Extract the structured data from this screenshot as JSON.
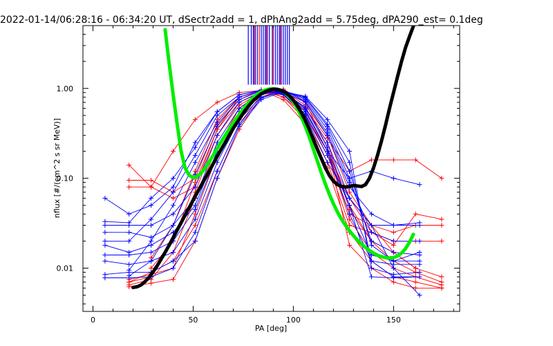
{
  "chart_data": {
    "type": "line",
    "title": "2022-01-14/06:28:16 - 06:34:20 UT, dSectr2add = 1, dPhAng2add = 5.75deg, dPA290_est=    0.1deg",
    "xlabel": "PA [deg]",
    "ylabel": "nflux [#/(cm^2 s sr MeV)]",
    "xlim": [
      -5,
      183
    ],
    "ylim": [
      0.0033,
      5.0
    ],
    "y_scale": "log",
    "x_ticks": [
      0,
      50,
      100,
      150
    ],
    "x_tick_labels": [
      "0",
      "50",
      "100",
      "150"
    ],
    "y_ticks": [
      0.01,
      0.1,
      1.0
    ],
    "y_tick_labels": [
      "0.01",
      "0.10",
      "1.00"
    ],
    "grid": false,
    "colors": {
      "red_series": "#ff0000",
      "blue_series": "#0000ff",
      "green_fit": "#00ee00",
      "black_fit": "#000000"
    },
    "vertical_markers": {
      "y_from": 1.1,
      "y_to": 5.0,
      "blue_x": [
        77.5,
        79,
        80,
        81,
        82,
        84,
        85,
        86,
        87,
        88,
        89.5,
        91,
        92,
        93,
        94,
        95,
        96,
        97,
        98
      ],
      "red_x": [
        80.5,
        83,
        86.5,
        90,
        93.5
      ]
    },
    "series": [
      {
        "color": "red",
        "x": [
          18,
          29,
          40,
          51,
          62,
          73,
          84,
          95,
          106,
          117,
          128,
          139,
          150,
          161,
          174
        ],
        "y": [
          0.007,
          0.008,
          0.02,
          0.09,
          0.35,
          0.8,
          0.95,
          0.9,
          0.6,
          0.25,
          0.045,
          0.02,
          0.012,
          0.009,
          0.007
        ]
      },
      {
        "color": "red",
        "x": [
          18,
          29,
          40,
          51,
          62,
          73,
          84,
          95,
          106,
          117,
          128,
          139,
          150,
          161,
          174
        ],
        "y": [
          0.0065,
          0.0075,
          0.015,
          0.06,
          0.22,
          0.6,
          0.92,
          0.92,
          0.55,
          0.2,
          0.035,
          0.015,
          0.01,
          0.008,
          0.0065
        ]
      },
      {
        "color": "red",
        "x": [
          18,
          29,
          40,
          51,
          62,
          73,
          84,
          95,
          106,
          117,
          128,
          139,
          150,
          161,
          174
        ],
        "y": [
          0.14,
          0.08,
          0.06,
          0.08,
          0.35,
          0.7,
          0.9,
          0.85,
          0.5,
          0.18,
          0.04,
          0.03,
          0.025,
          0.03,
          0.03
        ]
      },
      {
        "color": "red",
        "x": [
          18,
          29,
          40,
          51,
          62,
          73,
          84,
          95,
          106,
          117,
          128,
          139,
          150,
          161,
          174
        ],
        "y": [
          0.095,
          0.095,
          0.07,
          0.1,
          0.4,
          0.75,
          0.97,
          0.8,
          0.45,
          0.15,
          0.03,
          0.025,
          0.02,
          0.02,
          0.02
        ]
      },
      {
        "color": "red",
        "x": [
          18,
          29,
          40,
          51,
          62,
          73,
          84,
          95,
          106,
          117,
          128,
          139,
          150,
          161,
          174
        ],
        "y": [
          0.08,
          0.08,
          0.2,
          0.45,
          0.7,
          0.9,
          0.95,
          0.75,
          0.4,
          0.13,
          0.025,
          0.012,
          0.008,
          0.007,
          0.006
        ]
      },
      {
        "color": "red",
        "x": [
          18,
          29,
          40,
          51,
          62,
          73,
          84,
          95,
          106,
          117,
          128,
          139,
          150,
          161,
          174
        ],
        "y": [
          0.007,
          0.009,
          0.012,
          0.03,
          0.12,
          0.4,
          0.85,
          0.95,
          0.65,
          0.3,
          0.07,
          0.03,
          0.015,
          0.01,
          0.008
        ]
      },
      {
        "color": "red",
        "x": [
          18,
          29,
          40,
          51,
          62,
          73,
          84,
          95,
          106,
          117,
          128,
          139,
          150,
          161,
          174
        ],
        "y": [
          0.0075,
          0.0085,
          0.01,
          0.04,
          0.18,
          0.5,
          0.9,
          0.9,
          0.6,
          0.28,
          0.12,
          0.16,
          0.16,
          0.16,
          0.1
        ]
      },
      {
        "color": "red",
        "x": [
          18,
          29,
          40,
          51,
          62,
          73,
          84,
          95,
          106,
          117,
          128,
          139,
          150,
          161,
          174
        ],
        "y": [
          0.0062,
          0.0068,
          0.0075,
          0.02,
          0.1,
          0.35,
          0.8,
          0.98,
          0.7,
          0.22,
          0.018,
          0.01,
          0.007,
          0.006,
          0.006
        ]
      },
      {
        "color": "red",
        "x": [
          29,
          40,
          51,
          62,
          73,
          84,
          95,
          106,
          117,
          128,
          139,
          150,
          161,
          174
        ],
        "y": [
          0.013,
          0.03,
          0.12,
          0.45,
          0.8,
          0.95,
          0.8,
          0.5,
          0.2,
          0.06,
          0.025,
          0.018,
          0.04,
          0.035
        ]
      },
      {
        "color": "red",
        "x": [
          29,
          40,
          51,
          62,
          73,
          84,
          95,
          106,
          117,
          128,
          139,
          150,
          161
        ],
        "y": [
          0.01,
          0.02,
          0.07,
          0.3,
          0.65,
          0.9,
          0.95,
          0.55,
          0.2,
          0.05,
          0.02,
          0.015,
          0.01
        ]
      },
      {
        "color": "blue",
        "x": [
          6,
          18,
          29,
          40,
          51,
          62,
          73,
          84,
          95,
          106,
          117,
          128,
          139,
          150,
          163
        ],
        "y": [
          0.03,
          0.03,
          0.03,
          0.04,
          0.08,
          0.3,
          0.7,
          0.92,
          0.9,
          0.6,
          0.25,
          0.06,
          0.03,
          0.03,
          0.03
        ]
      },
      {
        "color": "blue",
        "x": [
          6,
          18,
          29,
          40,
          51,
          62,
          73,
          84,
          95,
          106,
          117,
          128,
          139,
          150,
          163
        ],
        "y": [
          0.025,
          0.025,
          0.022,
          0.03,
          0.06,
          0.25,
          0.6,
          0.9,
          0.92,
          0.7,
          0.3,
          0.08,
          0.04,
          0.03,
          0.032
        ]
      },
      {
        "color": "blue",
        "x": [
          6,
          18,
          29,
          40,
          51,
          62,
          73,
          84,
          95,
          106,
          117,
          128,
          139,
          150,
          163
        ],
        "y": [
          0.018,
          0.015,
          0.018,
          0.025,
          0.05,
          0.2,
          0.55,
          0.88,
          0.95,
          0.72,
          0.32,
          0.09,
          0.025,
          0.02,
          0.02
        ]
      },
      {
        "color": "blue",
        "x": [
          6,
          18,
          29,
          40,
          51,
          62,
          73,
          84,
          95,
          106,
          117,
          128,
          139,
          150,
          163
        ],
        "y": [
          0.014,
          0.014,
          0.015,
          0.02,
          0.045,
          0.18,
          0.5,
          0.85,
          0.95,
          0.75,
          0.35,
          0.1,
          0.02,
          0.015,
          0.014
        ]
      },
      {
        "color": "blue",
        "x": [
          6,
          18,
          29,
          40,
          51,
          62,
          73,
          84,
          95,
          106,
          117,
          128,
          139,
          150,
          163
        ],
        "y": [
          0.012,
          0.011,
          0.012,
          0.015,
          0.035,
          0.15,
          0.45,
          0.8,
          0.93,
          0.78,
          0.38,
          0.12,
          0.018,
          0.012,
          0.012
        ]
      },
      {
        "color": "blue",
        "x": [
          6,
          18,
          29,
          40,
          51,
          62,
          73,
          84,
          95,
          106,
          117,
          128,
          139,
          150,
          163
        ],
        "y": [
          0.0078,
          0.0078,
          0.008,
          0.01,
          0.025,
          0.12,
          0.4,
          0.78,
          0.94,
          0.8,
          0.4,
          0.15,
          0.012,
          0.008,
          0.008
        ]
      },
      {
        "color": "blue",
        "x": [
          6,
          18,
          29,
          40,
          51,
          62,
          73,
          84,
          95,
          106,
          117,
          128,
          139,
          150,
          163
        ],
        "y": [
          0.0085,
          0.009,
          0.009,
          0.012,
          0.02,
          0.1,
          0.38,
          0.75,
          0.92,
          0.82,
          0.45,
          0.2,
          0.01,
          0.0085,
          0.009
        ]
      },
      {
        "color": "blue",
        "x": [
          6,
          18,
          29,
          40,
          51,
          62,
          73,
          84,
          95,
          106,
          117,
          128,
          139,
          150,
          163
        ],
        "y": [
          0.06,
          0.04,
          0.05,
          0.08,
          0.25,
          0.55,
          0.85,
          0.95,
          0.85,
          0.5,
          0.15,
          0.06,
          0.03,
          0.01,
          0.005
        ]
      },
      {
        "color": "blue",
        "x": [
          6,
          18,
          29,
          40,
          51,
          62,
          73,
          84,
          95,
          106,
          117,
          128,
          139,
          150,
          163
        ],
        "y": [
          0.02,
          0.02,
          0.035,
          0.07,
          0.18,
          0.5,
          0.8,
          0.95,
          0.88,
          0.55,
          0.2,
          0.1,
          0.12,
          0.1,
          0.085
        ]
      },
      {
        "color": "blue",
        "x": [
          18,
          29,
          40,
          51,
          62,
          73,
          84,
          95,
          106,
          117,
          128,
          139,
          150,
          163
        ],
        "y": [
          0.0082,
          0.012,
          0.03,
          0.11,
          0.38,
          0.75,
          0.94,
          0.9,
          0.62,
          0.22,
          0.05,
          0.008,
          0.0078,
          0.008
        ]
      },
      {
        "color": "blue",
        "x": [
          18,
          29,
          40,
          51,
          62,
          73,
          84,
          95,
          106,
          117,
          128,
          139,
          150,
          163
        ],
        "y": [
          0.0095,
          0.02,
          0.05,
          0.15,
          0.42,
          0.8,
          0.95,
          0.88,
          0.58,
          0.2,
          0.04,
          0.012,
          0.011,
          0.011
        ]
      },
      {
        "color": "blue",
        "x": [
          6,
          18,
          29,
          40,
          51,
          62,
          73,
          84,
          95,
          106,
          117,
          128,
          139,
          150,
          163
        ],
        "y": [
          0.033,
          0.032,
          0.06,
          0.1,
          0.22,
          0.55,
          0.85,
          0.96,
          0.86,
          0.52,
          0.18,
          0.05,
          0.014,
          0.012,
          0.015
        ]
      }
    ],
    "fits": [
      {
        "color": "green",
        "x": [
          36,
          38,
          40,
          42,
          44,
          46,
          48,
          50,
          52,
          54,
          56,
          58,
          60,
          62,
          64,
          66,
          68,
          70,
          72,
          74,
          76,
          78,
          80,
          82,
          84,
          86,
          88,
          90,
          92,
          94,
          96,
          98,
          100,
          102,
          104,
          106,
          108,
          110,
          112,
          114,
          116,
          118,
          120,
          122,
          124,
          126,
          128,
          130,
          132,
          134,
          136,
          138,
          140,
          142,
          144,
          146,
          148,
          150,
          152,
          154,
          156,
          158,
          160
        ],
        "y": [
          4.5,
          1.9,
          0.85,
          0.4,
          0.2,
          0.13,
          0.108,
          0.102,
          0.105,
          0.114,
          0.13,
          0.152,
          0.18,
          0.215,
          0.255,
          0.3,
          0.35,
          0.41,
          0.48,
          0.55,
          0.63,
          0.71,
          0.79,
          0.86,
          0.92,
          0.96,
          0.985,
          0.99,
          0.98,
          0.95,
          0.89,
          0.81,
          0.71,
          0.6,
          0.48,
          0.375,
          0.285,
          0.21,
          0.155,
          0.114,
          0.086,
          0.066,
          0.052,
          0.042,
          0.035,
          0.03,
          0.026,
          0.023,
          0.0205,
          0.0185,
          0.017,
          0.0157,
          0.0147,
          0.0139,
          0.0134,
          0.0131,
          0.013,
          0.0131,
          0.0136,
          0.0147,
          0.0165,
          0.0195,
          0.024
        ]
      },
      {
        "color": "black",
        "x": [
          20,
          22,
          24,
          26,
          28,
          30,
          32,
          34,
          36,
          38,
          40,
          42,
          44,
          46,
          48,
          50,
          52,
          54,
          56,
          58,
          60,
          62,
          64,
          66,
          68,
          70,
          72,
          74,
          76,
          78,
          80,
          82,
          84,
          86,
          88,
          90,
          92,
          94,
          96,
          98,
          100,
          102,
          104,
          106,
          108,
          110,
          112,
          114,
          116,
          118,
          120,
          122,
          124,
          126,
          128,
          130,
          132,
          134,
          136,
          138,
          140,
          142,
          144,
          146,
          148,
          150,
          152,
          154,
          156,
          158,
          160
        ],
        "y": [
          0.0061,
          0.0062,
          0.0065,
          0.0071,
          0.0079,
          0.0091,
          0.0106,
          0.0126,
          0.015,
          0.018,
          0.0218,
          0.0265,
          0.032,
          0.039,
          0.047,
          0.057,
          0.069,
          0.083,
          0.1,
          0.12,
          0.145,
          0.175,
          0.21,
          0.25,
          0.3,
          0.36,
          0.42,
          0.49,
          0.57,
          0.65,
          0.73,
          0.8,
          0.87,
          0.92,
          0.96,
          0.98,
          0.975,
          0.95,
          0.9,
          0.83,
          0.74,
          0.64,
          0.54,
          0.44,
          0.35,
          0.27,
          0.21,
          0.165,
          0.13,
          0.107,
          0.093,
          0.085,
          0.081,
          0.08,
          0.081,
          0.083,
          0.082,
          0.081,
          0.085,
          0.1,
          0.13,
          0.18,
          0.26,
          0.39,
          0.6,
          0.9,
          1.35,
          2.0,
          2.85,
          3.8,
          5.0
        ]
      }
    ]
  }
}
